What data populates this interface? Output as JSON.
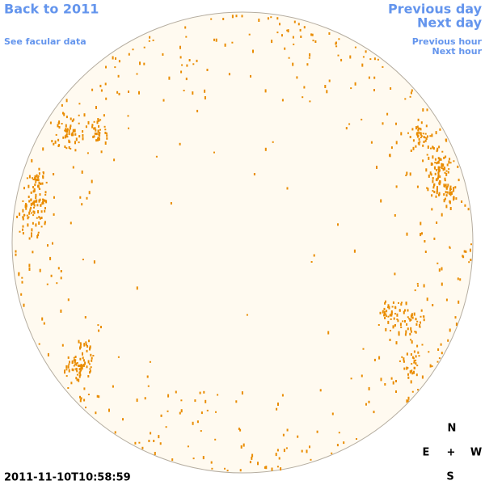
{
  "nav": {
    "back": "Back to 2011",
    "facular": "See facular data",
    "previous_day": "Previous day",
    "next_day": "Next day",
    "previous_hour": "Previous hour",
    "next_hour": "Next hour"
  },
  "timestamp": "2011-11-10T10:58:59",
  "compass": {
    "north": "N",
    "east": "E",
    "center": "+",
    "west": "W",
    "south": "S"
  }
}
